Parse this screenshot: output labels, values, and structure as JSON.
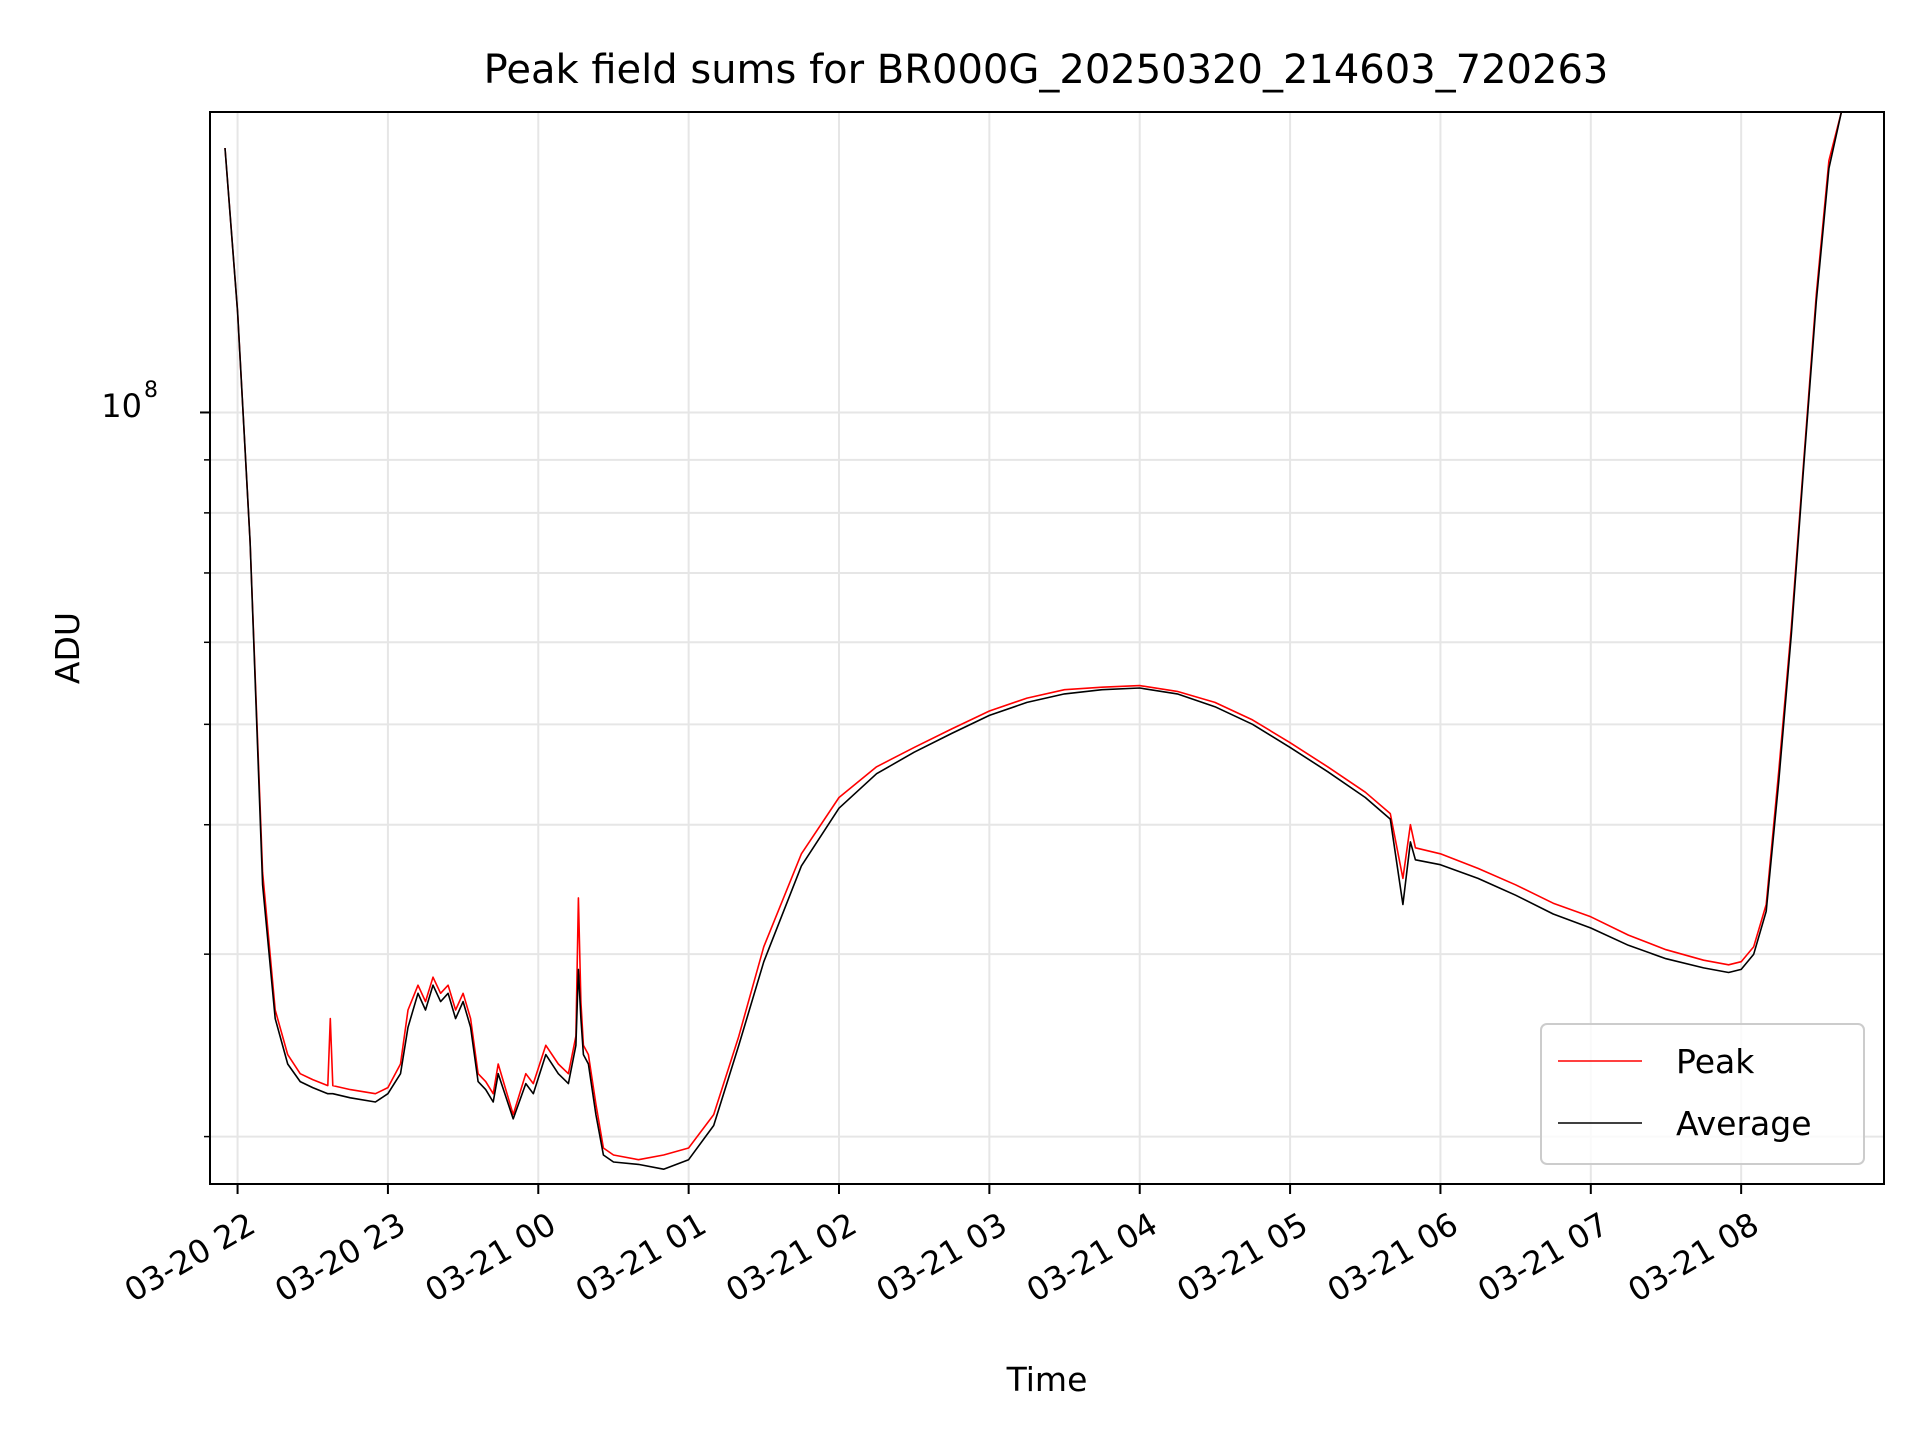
{
  "chart_data": {
    "type": "line",
    "title": "Peak field sums for BR000G_20250320_214603_720263",
    "xlabel": "Time",
    "ylabel": "ADU",
    "y_scale": "log",
    "grid": true,
    "x_tick_labels": [
      "03-20 22",
      "03-20 23",
      "03-21 00",
      "03-21 01",
      "03-21 02",
      "03-21 03",
      "03-21 04",
      "03-21 05",
      "03-21 06",
      "03-21 07",
      "03-21 08"
    ],
    "y_tick_label": {
      "base": "10",
      "exponent": "8"
    },
    "y_tick_value": 100000000,
    "xlim": [
      "2025-03-20T21:49",
      "2025-03-21T08:57"
    ],
    "ylim": [
      18000000,
      195000000
    ],
    "legend": {
      "position": "lower right",
      "entries": [
        "Peak",
        "Average"
      ]
    },
    "colors": {
      "Peak": "#ff0000",
      "Average": "#000000",
      "grid": "#e6e6e6"
    },
    "series": [
      {
        "name": "Peak",
        "color": "#ff0000",
        "x": [
          "2025-03-20T21:55",
          "2025-03-20T22:00",
          "2025-03-20T22:05",
          "2025-03-20T22:10",
          "2025-03-20T22:15",
          "2025-03-20T22:20",
          "2025-03-20T22:25",
          "2025-03-20T22:30",
          "2025-03-20T22:36",
          "2025-03-20T22:37",
          "2025-03-20T22:38",
          "2025-03-20T22:45",
          "2025-03-20T22:55",
          "2025-03-20T23:00",
          "2025-03-20T23:05",
          "2025-03-20T23:08",
          "2025-03-20T23:12",
          "2025-03-20T23:15",
          "2025-03-20T23:18",
          "2025-03-20T23:21",
          "2025-03-20T23:24",
          "2025-03-20T23:27",
          "2025-03-20T23:30",
          "2025-03-20T23:33",
          "2025-03-20T23:36",
          "2025-03-20T23:39",
          "2025-03-20T23:42",
          "2025-03-20T23:44",
          "2025-03-20T23:50",
          "2025-03-20T23:55",
          "2025-03-20T23:58",
          "2025-03-21T00:03",
          "2025-03-21T00:08",
          "2025-03-21T00:12",
          "2025-03-21T00:15",
          "2025-03-21T00:16",
          "2025-03-21T00:17",
          "2025-03-21T00:18",
          "2025-03-21T00:20",
          "2025-03-21T00:23",
          "2025-03-21T00:26",
          "2025-03-21T00:30",
          "2025-03-21T00:40",
          "2025-03-21T00:50",
          "2025-03-21T01:00",
          "2025-03-21T01:10",
          "2025-03-21T01:20",
          "2025-03-21T01:30",
          "2025-03-21T01:45",
          "2025-03-21T02:00",
          "2025-03-21T02:15",
          "2025-03-21T02:30",
          "2025-03-21T02:45",
          "2025-03-21T03:00",
          "2025-03-21T03:15",
          "2025-03-21T03:30",
          "2025-03-21T03:45",
          "2025-03-21T04:00",
          "2025-03-21T04:15",
          "2025-03-21T04:30",
          "2025-03-21T04:45",
          "2025-03-21T05:00",
          "2025-03-21T05:15",
          "2025-03-21T05:30",
          "2025-03-21T05:40",
          "2025-03-21T05:45",
          "2025-03-21T05:48",
          "2025-03-21T05:50",
          "2025-03-21T06:00",
          "2025-03-21T06:15",
          "2025-03-21T06:30",
          "2025-03-21T06:45",
          "2025-03-21T07:00",
          "2025-03-21T07:15",
          "2025-03-21T07:30",
          "2025-03-21T07:45",
          "2025-03-21T07:55",
          "2025-03-21T08:00",
          "2025-03-21T08:05",
          "2025-03-21T08:10",
          "2025-03-21T08:15",
          "2025-03-21T08:20",
          "2025-03-21T08:25",
          "2025-03-21T08:30",
          "2025-03-21T08:35",
          "2025-03-21T08:40"
        ],
        "y": [
          180000000,
          125000000,
          75000000,
          36000000,
          26500000,
          24000000,
          23000000,
          22700000,
          22400000,
          26000000,
          22400000,
          22200000,
          22000000,
          22300000,
          23500000,
          26500000,
          28000000,
          27000000,
          28500000,
          27500000,
          28000000,
          26500000,
          27500000,
          26000000,
          23000000,
          22600000,
          22000000,
          23500000,
          21000000,
          23000000,
          22500000,
          24500000,
          23500000,
          23000000,
          25000000,
          34000000,
          27000000,
          24500000,
          24000000,
          21500000,
          19500000,
          19200000,
          19000000,
          19200000,
          19500000,
          21000000,
          25000000,
          30500000,
          37500000,
          42500000,
          45500000,
          47500000,
          49500000,
          51500000,
          53000000,
          54000000,
          54300000,
          54500000,
          53800000,
          52500000,
          50500000,
          48000000,
          45500000,
          43000000,
          41000000,
          35500000,
          40000000,
          38000000,
          37500000,
          36300000,
          35000000,
          33600000,
          32600000,
          31300000,
          30300000,
          29600000,
          29300000,
          29500000,
          30500000,
          33500000,
          45000000,
          62000000,
          90000000,
          130000000,
          175000000,
          195000000
        ]
      },
      {
        "name": "Average",
        "color": "#000000",
        "x": [
          "2025-03-20T21:55",
          "2025-03-20T22:00",
          "2025-03-20T22:05",
          "2025-03-20T22:10",
          "2025-03-20T22:15",
          "2025-03-20T22:20",
          "2025-03-20T22:25",
          "2025-03-20T22:30",
          "2025-03-20T22:36",
          "2025-03-20T22:38",
          "2025-03-20T22:45",
          "2025-03-20T22:55",
          "2025-03-20T23:00",
          "2025-03-20T23:05",
          "2025-03-20T23:08",
          "2025-03-20T23:12",
          "2025-03-20T23:15",
          "2025-03-20T23:18",
          "2025-03-20T23:21",
          "2025-03-20T23:24",
          "2025-03-20T23:27",
          "2025-03-20T23:30",
          "2025-03-20T23:33",
          "2025-03-20T23:36",
          "2025-03-20T23:39",
          "2025-03-20T23:42",
          "2025-03-20T23:44",
          "2025-03-20T23:50",
          "2025-03-20T23:55",
          "2025-03-20T23:58",
          "2025-03-21T00:03",
          "2025-03-21T00:08",
          "2025-03-21T00:12",
          "2025-03-21T00:15",
          "2025-03-21T00:16",
          "2025-03-21T00:17",
          "2025-03-21T00:18",
          "2025-03-21T00:20",
          "2025-03-21T00:23",
          "2025-03-21T00:26",
          "2025-03-21T00:30",
          "2025-03-21T00:40",
          "2025-03-21T00:50",
          "2025-03-21T01:00",
          "2025-03-21T01:10",
          "2025-03-21T01:20",
          "2025-03-21T01:30",
          "2025-03-21T01:45",
          "2025-03-21T02:00",
          "2025-03-21T02:15",
          "2025-03-21T02:30",
          "2025-03-21T02:45",
          "2025-03-21T03:00",
          "2025-03-21T03:15",
          "2025-03-21T03:30",
          "2025-03-21T03:45",
          "2025-03-21T04:00",
          "2025-03-21T04:15",
          "2025-03-21T04:30",
          "2025-03-21T04:45",
          "2025-03-21T05:00",
          "2025-03-21T05:15",
          "2025-03-21T05:30",
          "2025-03-21T05:40",
          "2025-03-21T05:45",
          "2025-03-21T05:48",
          "2025-03-21T05:50",
          "2025-03-21T06:00",
          "2025-03-21T06:15",
          "2025-03-21T06:30",
          "2025-03-21T06:45",
          "2025-03-21T07:00",
          "2025-03-21T07:15",
          "2025-03-21T07:30",
          "2025-03-21T07:45",
          "2025-03-21T07:55",
          "2025-03-21T08:00",
          "2025-03-21T08:05",
          "2025-03-21T08:10",
          "2025-03-21T08:15",
          "2025-03-21T08:20",
          "2025-03-21T08:25",
          "2025-03-21T08:30",
          "2025-03-21T08:35",
          "2025-03-21T08:40"
        ],
        "y": [
          180000000,
          125000000,
          75000000,
          35000000,
          26000000,
          23500000,
          22600000,
          22300000,
          22000000,
          22000000,
          21800000,
          21600000,
          22000000,
          23000000,
          25500000,
          27500000,
          26500000,
          28000000,
          27000000,
          27500000,
          26000000,
          27000000,
          25500000,
          22600000,
          22200000,
          21600000,
          23000000,
          20800000,
          22500000,
          22000000,
          24000000,
          23000000,
          22500000,
          24500000,
          29000000,
          26000000,
          24000000,
          23500000,
          21000000,
          19200000,
          18900000,
          18800000,
          18600000,
          19000000,
          20500000,
          24500000,
          29500000,
          36500000,
          41500000,
          44800000,
          47000000,
          49000000,
          51000000,
          52500000,
          53500000,
          54000000,
          54200000,
          53500000,
          52000000,
          50000000,
          47500000,
          45000000,
          42500000,
          40500000,
          33500000,
          38500000,
          37000000,
          36600000,
          35500000,
          34200000,
          32800000,
          31800000,
          30600000,
          29700000,
          29100000,
          28800000,
          29000000,
          30000000,
          33000000,
          44000000,
          61000000,
          89000000,
          128000000,
          172000000,
          195000000
        ]
      }
    ]
  }
}
